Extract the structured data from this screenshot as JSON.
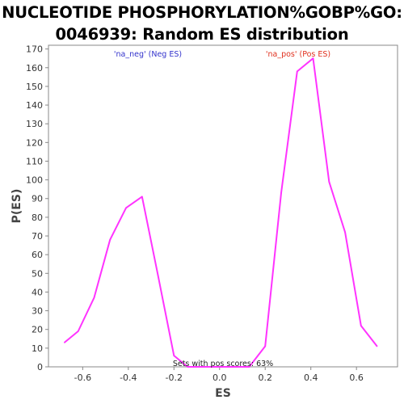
{
  "chart_data": {
    "type": "line",
    "title_line1": "NUCLEOTIDE PHOSPHORYLATION%GOBP%GO:",
    "title_line2": "0046939: Random ES distribution",
    "xlabel": "ES",
    "ylabel": "P(ES)",
    "xlim": [
      -0.75,
      0.78
    ],
    "ylim": [
      0,
      172
    ],
    "xticks": [
      "-0.6",
      "-0.4",
      "-0.2",
      "0.0",
      "0.2",
      "0.4",
      "0.6"
    ],
    "xtick_values": [
      -0.6,
      -0.4,
      -0.2,
      0.0,
      0.2,
      0.4,
      0.6
    ],
    "yticks": [
      "0",
      "10",
      "20",
      "30",
      "40",
      "50",
      "60",
      "70",
      "80",
      "90",
      "100",
      "110",
      "120",
      "130",
      "140",
      "150",
      "160",
      "170"
    ],
    "ytick_values": [
      0,
      10,
      20,
      30,
      40,
      50,
      60,
      70,
      80,
      90,
      100,
      110,
      120,
      130,
      140,
      150,
      160,
      170
    ],
    "grid": false,
    "series": [
      {
        "color": "#ff33ff",
        "x": [
          -0.68,
          -0.62,
          -0.55,
          -0.48,
          -0.41,
          -0.34,
          -0.27,
          -0.2,
          -0.14,
          -0.07,
          0.0,
          0.07,
          0.13,
          0.2,
          0.27,
          0.34,
          0.41,
          0.48,
          0.55,
          0.62,
          0.69
        ],
        "y": [
          13,
          19,
          37,
          68,
          85,
          91,
          49,
          6,
          0,
          0,
          0,
          0,
          0,
          11,
          93,
          158,
          165,
          99,
          72,
          22,
          11
        ]
      }
    ],
    "legend": [
      {
        "text": "'na_neg' (Neg ES)",
        "color": "#3333cc"
      },
      {
        "text": "'na_pos' (Pos ES)",
        "color": "#e0301e"
      }
    ],
    "annotation": "Sets with pos scores: 63%"
  }
}
